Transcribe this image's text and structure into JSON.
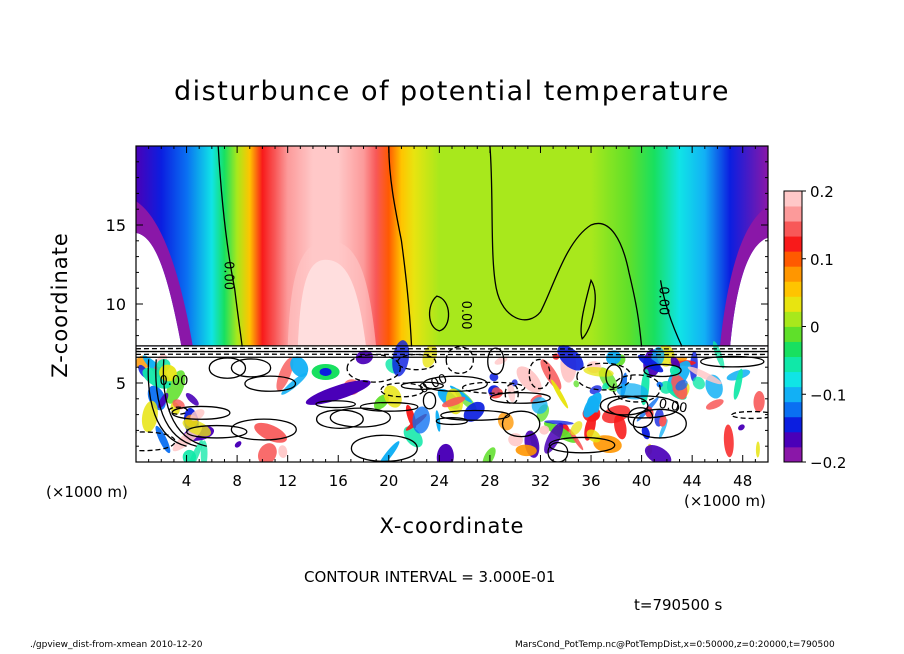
{
  "chart_data": {
    "type": "heatmap",
    "title": "disturbunce of potential temperature",
    "xlabel": "X-coordinate",
    "ylabel": "Z-coordinate",
    "x_unit_left": "(×1000 m)",
    "x_unit_right": "(×1000 m)",
    "xlim": [
      0,
      50
    ],
    "ylim": [
      0,
      20
    ],
    "x_ticks": [
      4,
      8,
      12,
      16,
      20,
      24,
      28,
      32,
      36,
      40,
      44,
      48
    ],
    "x_tick_labels": [
      "4",
      "8",
      "12",
      "16",
      "20",
      "24",
      "28",
      "32",
      "36",
      "40",
      "44",
      "48"
    ],
    "y_ticks": [
      5,
      10,
      15
    ],
    "y_tick_labels": [
      "5",
      "10",
      "15"
    ],
    "colorbar": {
      "range": [
        -0.2,
        0.2
      ],
      "ticks": [
        0.2,
        0.1,
        0,
        -0.1,
        -0.2
      ],
      "tick_labels": [
        "0.2",
        "0.1",
        "0",
        "−0.1",
        "−0.2"
      ],
      "colors": [
        "#8a17a8",
        "#4a00b8",
        "#0b1ee0",
        "#0a6ff2",
        "#12b0f5",
        "#10e4e6",
        "#10e8a8",
        "#18e060",
        "#5fe02a",
        "#a8e81c",
        "#e8e410",
        "#ffc400",
        "#ff9600",
        "#ff5a00",
        "#f81a1a",
        "#f85858",
        "#fc9a9a",
        "#ffc8c8"
      ]
    },
    "contour_labels": [
      "0.00",
      "0.00",
      "0.00",
      "0.00",
      "0.00",
      "0.00"
    ],
    "contour_interval": "CONTOUR INTERVAL = 3.000E-01",
    "time": "t=790500 s",
    "upper_layer_warm_core_x": [
      10,
      21
    ],
    "upper_layer_cold_edges_x": [
      [
        0,
        8
      ],
      [
        44,
        50
      ]
    ],
    "layer_boundary_z": 7.3
  },
  "footer": {
    "left": "./gpview_dist-from-xmean  2010-12-20",
    "right": "MarsCond_PotTemp.nc@PotTempDist,x=0:50000,z=0:20000,t=790500"
  }
}
